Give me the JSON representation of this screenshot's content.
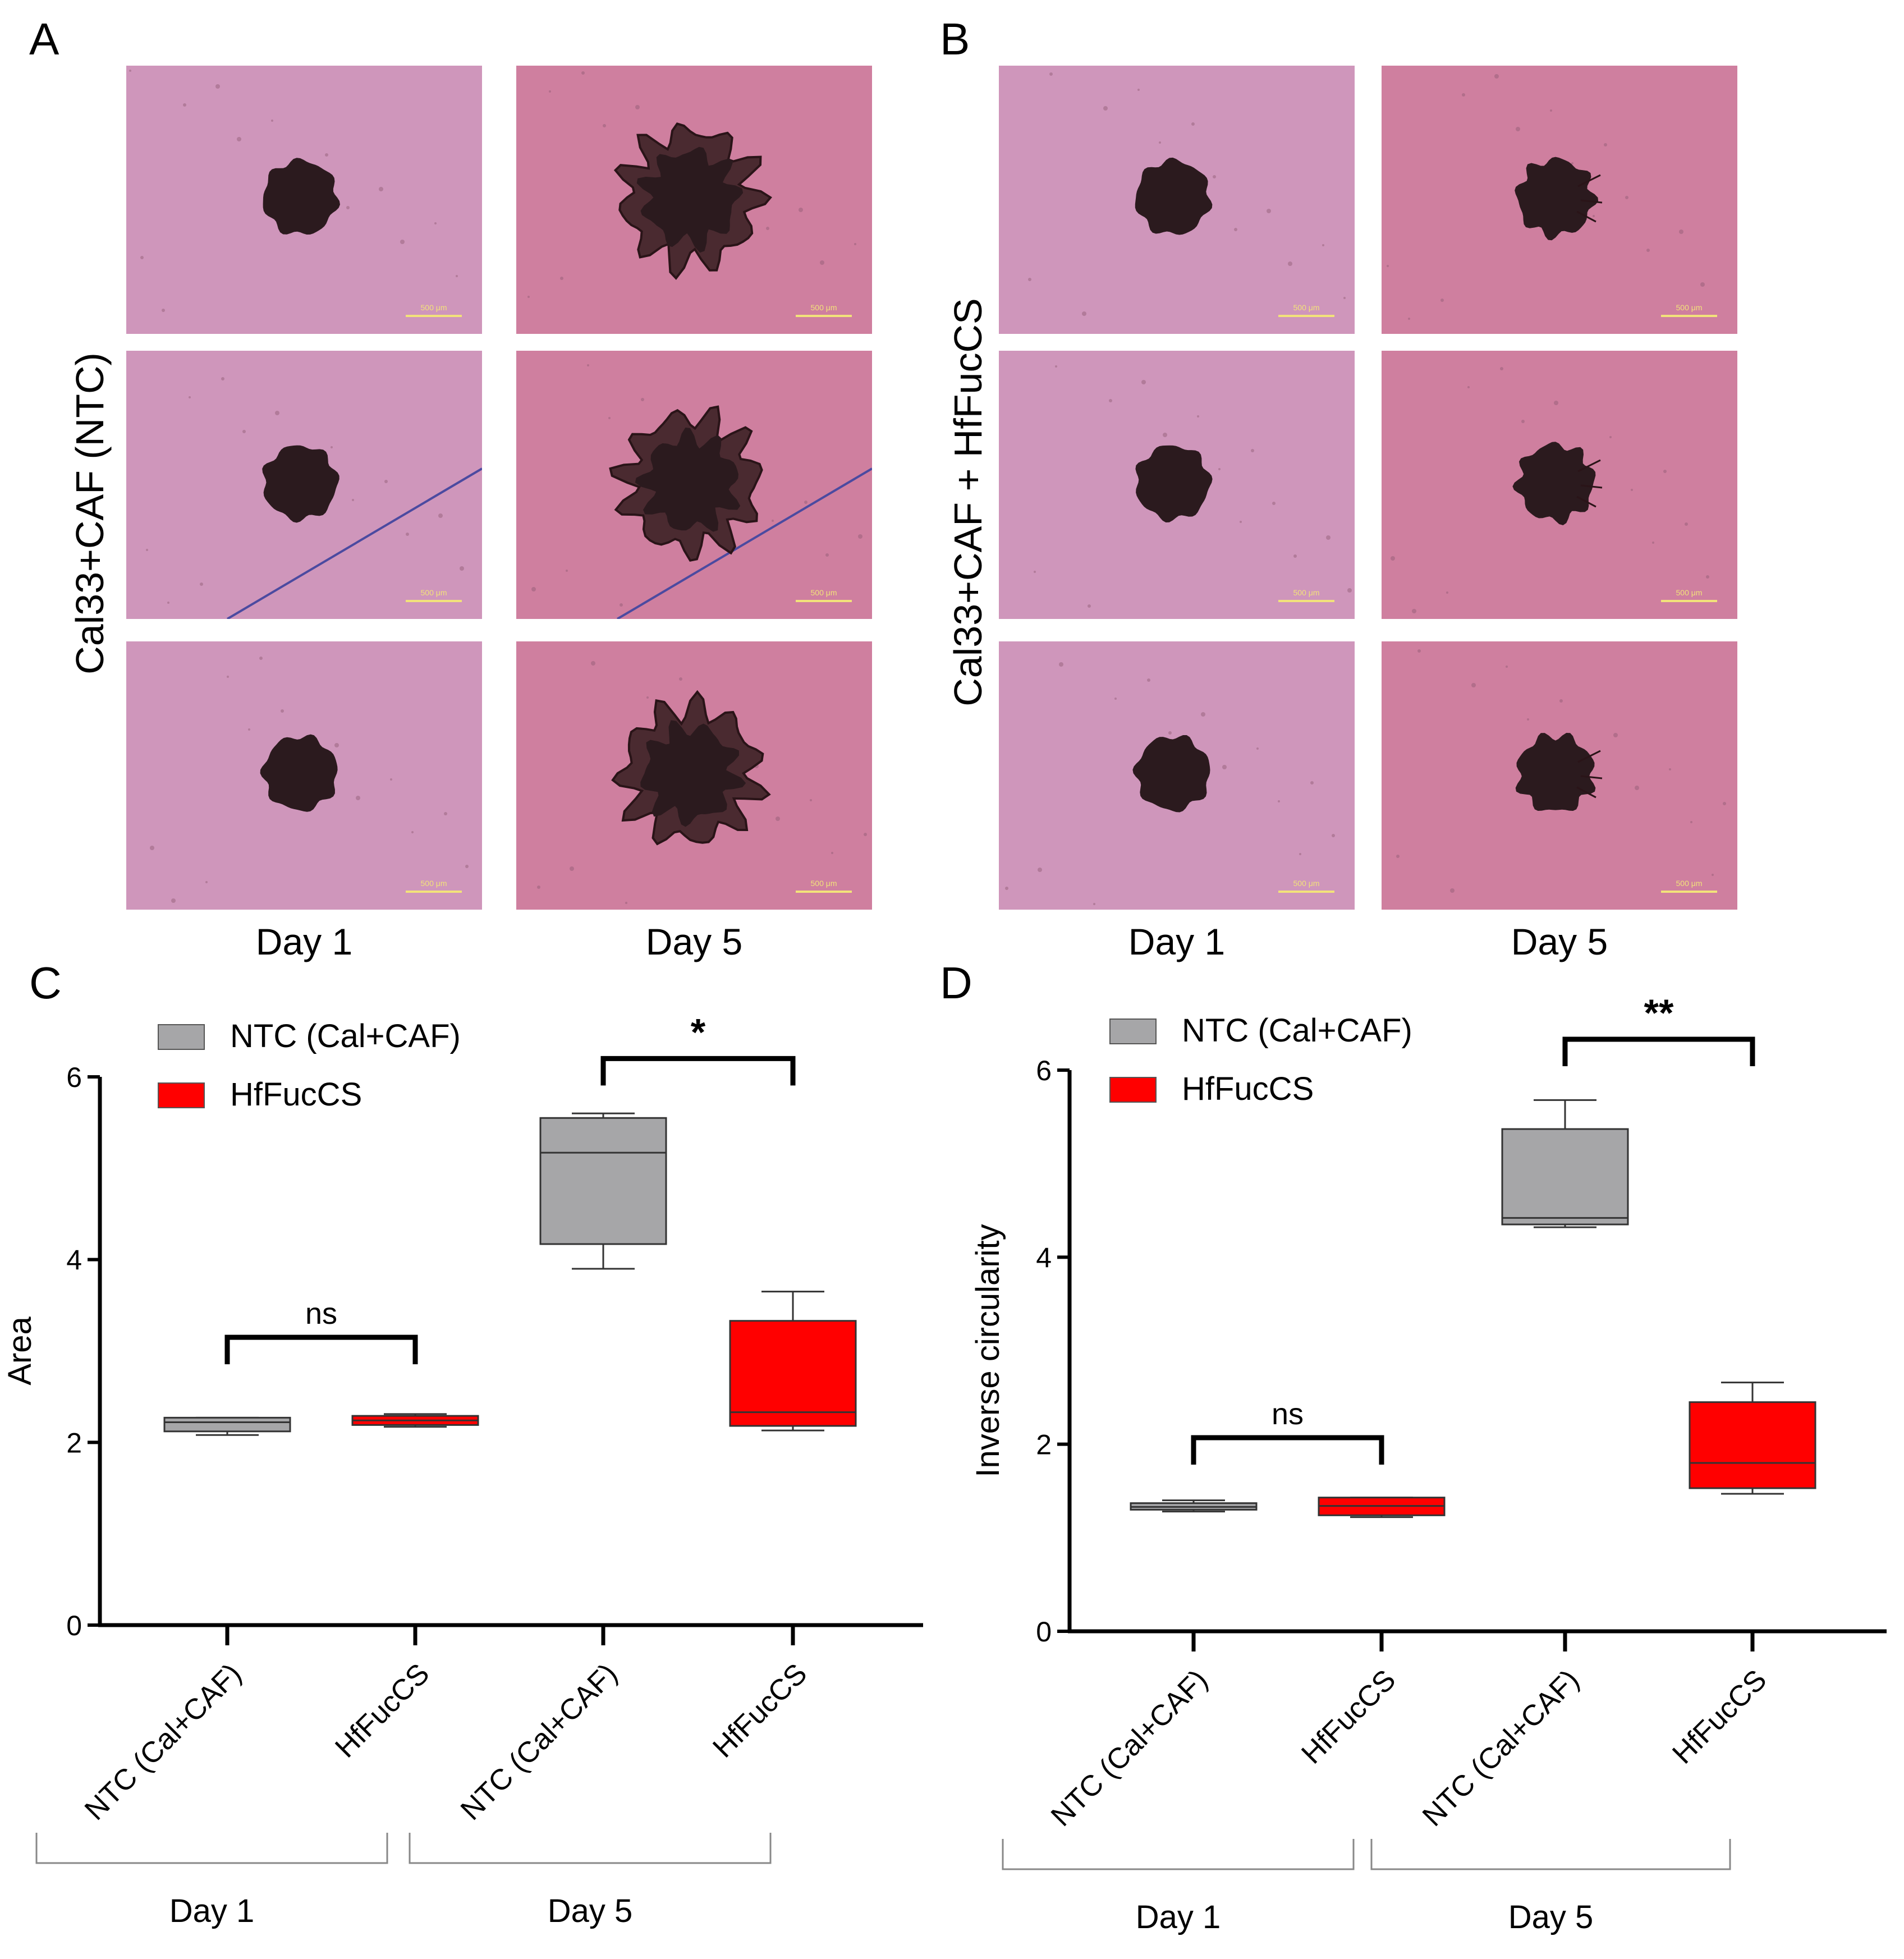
{
  "panels": {
    "A": {
      "letter": "A",
      "row_label": "Cal33+CAF (NTC)",
      "columns": [
        "Day 1",
        "Day 5"
      ],
      "scale_bar": "500 μm"
    },
    "B": {
      "letter": "B",
      "row_label": "Cal33+CAF + HfFucCS",
      "columns": [
        "Day 1",
        "Day 5"
      ],
      "scale_bar": "500 μm"
    }
  },
  "colors": {
    "ntc": "#a6a6a8",
    "hffuccs": "#ff0000",
    "micro_bg": "#d79bc0",
    "spheroid": "#2b1a1e"
  },
  "chart_data": [
    {
      "panel": "C",
      "type": "box",
      "ylabel": "Area",
      "ylim": [
        0,
        6
      ],
      "yticks": [
        0,
        2,
        4,
        6
      ],
      "categories": [
        "NTC (Cal+CAF)",
        "HfFucCS",
        "NTC (Cal+CAF)",
        "HfFucCS"
      ],
      "groups": [
        "Day 1",
        "Day 5"
      ],
      "legend": [
        "NTC (Cal+CAF)",
        "HfFucCS"
      ],
      "boxes": [
        {
          "series": "NTC (Cal+CAF)",
          "group": "Day 1",
          "min": 2.08,
          "q1": 2.12,
          "median": 2.22,
          "q3": 2.27,
          "max": 2.27
        },
        {
          "series": "HfFucCS",
          "group": "Day 1",
          "min": 2.17,
          "q1": 2.19,
          "median": 2.24,
          "q3": 2.29,
          "max": 2.31
        },
        {
          "series": "NTC (Cal+CAF)",
          "group": "Day 5",
          "min": 3.9,
          "q1": 4.17,
          "median": 5.17,
          "q3": 5.55,
          "max": 5.6
        },
        {
          "series": "HfFucCS",
          "group": "Day 5",
          "min": 2.13,
          "q1": 2.18,
          "median": 2.33,
          "q3": 3.33,
          "max": 3.65
        }
      ],
      "significance": [
        {
          "pair": [
            0,
            1
          ],
          "label": "ns",
          "y": 3.15
        },
        {
          "pair": [
            2,
            3
          ],
          "label": "*",
          "y": 6.2
        }
      ]
    },
    {
      "panel": "D",
      "type": "box",
      "ylabel": "Inverse circularity",
      "ylim": [
        0,
        6
      ],
      "yticks": [
        0,
        2,
        4,
        6
      ],
      "categories": [
        "NTC (Cal+CAF)",
        "HfFucCS",
        "NTC (Cal+CAF)",
        "HfFucCS"
      ],
      "groups": [
        "Day 1",
        "Day 5"
      ],
      "legend": [
        "NTC (Cal+CAF)",
        "HfFucCS"
      ],
      "boxes": [
        {
          "series": "NTC (Cal+CAF)",
          "group": "Day 1",
          "min": 1.28,
          "q1": 1.3,
          "median": 1.33,
          "q3": 1.37,
          "max": 1.4
        },
        {
          "series": "HfFucCS",
          "group": "Day 1",
          "min": 1.22,
          "q1": 1.24,
          "median": 1.34,
          "q3": 1.43,
          "max": 1.43
        },
        {
          "series": "NTC (Cal+CAF)",
          "group": "Day 5",
          "min": 4.32,
          "q1": 4.35,
          "median": 4.42,
          "q3": 5.37,
          "max": 5.68
        },
        {
          "series": "HfFucCS",
          "group": "Day 5",
          "min": 1.47,
          "q1": 1.53,
          "median": 1.8,
          "q3": 2.45,
          "max": 2.66
        }
      ],
      "significance": [
        {
          "pair": [
            0,
            1
          ],
          "label": "ns",
          "y": 2.07
        },
        {
          "pair": [
            2,
            3
          ],
          "label": "**",
          "y": 6.33
        }
      ]
    }
  ]
}
